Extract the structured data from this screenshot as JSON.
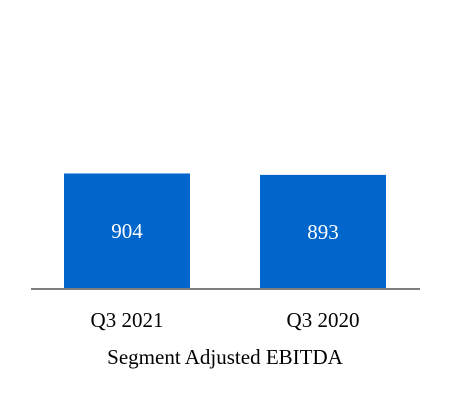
{
  "chart_data": {
    "type": "bar",
    "categories": [
      "Q3 2021",
      "Q3 2020"
    ],
    "values": [
      904,
      893
    ],
    "data_labels": [
      "904",
      "893"
    ],
    "title": "",
    "xlabel": "Segment Adjusted EBITDA",
    "ylabel": "",
    "ylim": [
      0,
      1800
    ],
    "grid": false,
    "legend": "none",
    "colors": {
      "bar": "#0066CC",
      "axis": "#7F7F7F",
      "label": "#FFFFFF",
      "text": "#000000"
    }
  }
}
